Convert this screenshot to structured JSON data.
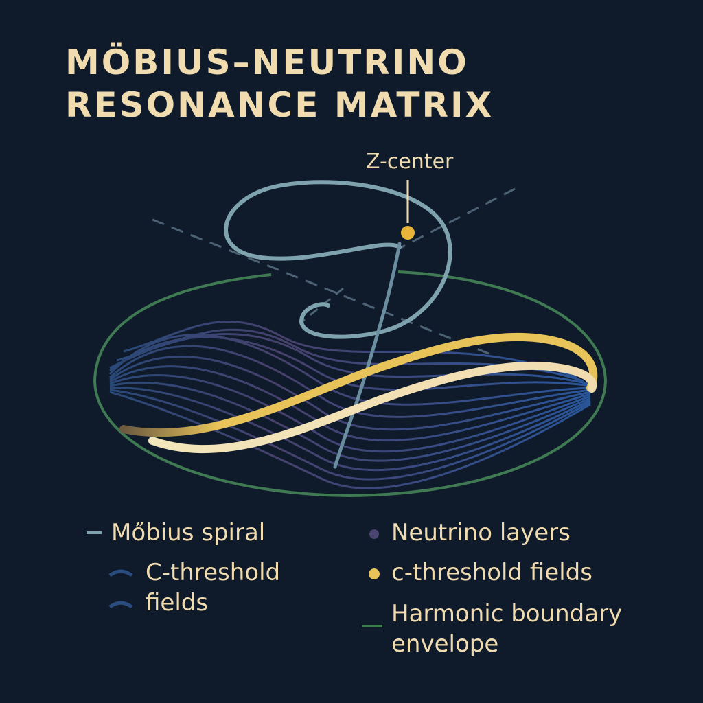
{
  "title": {
    "line1": "MÖBIUS–NEUTRINO",
    "line2": "RESONANCE MATRIX"
  },
  "annotation": {
    "label": "Z-center"
  },
  "legend": {
    "mobius_spiral": "Mőbius spiral",
    "neutrino_layers": "Neutrino layers",
    "c_threshold_upper_line1": "C-threshold",
    "c_threshold_upper_line2": "fields",
    "c_threshold_lower": "c-threshold fields",
    "harmonic_line1": "Harmonic boundary",
    "harmonic_line2": "envelope"
  },
  "colors": {
    "background": "#0f1b2b",
    "text": "#f1dcb0",
    "spiral": "#7fa3ae",
    "neutrino_layers": "#4a4470",
    "c_threshold_upper": "#2b4c7e",
    "c_threshold_lower": "#e8c35a",
    "harmonic_envelope": "#3f7a52"
  }
}
